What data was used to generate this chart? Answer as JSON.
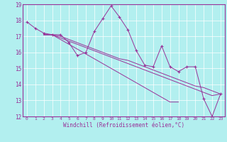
{
  "xlabel": "Windchill (Refroidissement éolien,°C)",
  "xlim": [
    -0.5,
    23.5
  ],
  "ylim": [
    12,
    19
  ],
  "yticks": [
    12,
    13,
    14,
    15,
    16,
    17,
    18,
    19
  ],
  "xticks": [
    0,
    1,
    2,
    3,
    4,
    5,
    6,
    7,
    8,
    9,
    10,
    11,
    12,
    13,
    14,
    15,
    16,
    17,
    18,
    19,
    20,
    21,
    22,
    23
  ],
  "bg_color": "#b2efef",
  "line_color": "#993399",
  "grid_color": "#ffffff",
  "series": {
    "main": [
      17.9,
      17.5,
      17.2,
      17.1,
      17.1,
      16.6,
      15.8,
      16.0,
      17.3,
      18.1,
      18.9,
      18.2,
      17.4,
      16.1,
      15.2,
      15.1,
      16.4,
      15.1,
      14.8,
      15.1,
      15.1,
      13.1,
      12.0,
      13.4
    ],
    "trend1": [
      null,
      null,
      17.1,
      17.1,
      17.0,
      16.8,
      16.6,
      16.4,
      16.2,
      16.0,
      15.8,
      15.6,
      15.5,
      15.3,
      15.1,
      14.9,
      14.7,
      14.5,
      14.3,
      14.1,
      13.9,
      13.8,
      13.6,
      13.4
    ],
    "trend2": [
      null,
      null,
      17.1,
      17.1,
      16.9,
      16.7,
      16.5,
      16.3,
      16.1,
      15.9,
      15.7,
      15.5,
      15.3,
      15.1,
      14.9,
      14.7,
      14.5,
      14.3,
      14.1,
      13.9,
      13.7,
      13.5,
      13.3,
      13.4
    ],
    "trend3": [
      null,
      null,
      17.1,
      17.1,
      16.8,
      16.5,
      16.2,
      15.9,
      15.6,
      15.3,
      15.0,
      14.7,
      14.4,
      14.1,
      13.8,
      13.5,
      13.2,
      12.9,
      12.9,
      null,
      null,
      null,
      null,
      null
    ]
  }
}
